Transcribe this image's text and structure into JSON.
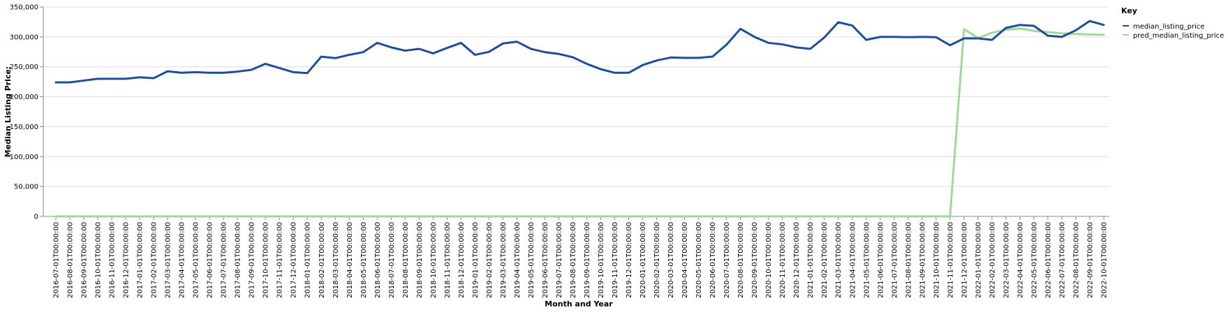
{
  "colors": {
    "median_listing_price": "#1f4e99",
    "pred_median_listing_price": "#a1d99b",
    "grid": "#dddddd",
    "axis": "#888888"
  },
  "chart_data": {
    "type": "line",
    "xlabel": "Month and Year",
    "ylabel": "Median Listing Price:",
    "ylim": [
      0,
      350000
    ],
    "yticks": [
      0,
      50000,
      100000,
      150000,
      200000,
      250000,
      300000,
      350000
    ],
    "ytick_labels": [
      "0",
      "50,000",
      "100,000",
      "150,000",
      "200,000",
      "250,000",
      "300,000",
      "350,000"
    ],
    "grid": true,
    "legend": {
      "title": "Key",
      "position": "top-right"
    },
    "x": [
      "2016-07-01T00:00:00",
      "2016-08-01T00:00:00",
      "2016-09-01T00:00:00",
      "2016-10-01T00:00:00",
      "2016-11-01T00:00:00",
      "2016-12-01T00:00:00",
      "2017-01-01T00:00:00",
      "2017-02-01T00:00:00",
      "2017-03-01T00:00:00",
      "2017-04-01T00:00:00",
      "2017-05-01T00:00:00",
      "2017-06-01T00:00:00",
      "2017-07-01T00:00:00",
      "2017-08-01T00:00:00",
      "2017-09-01T00:00:00",
      "2017-10-01T00:00:00",
      "2017-11-01T00:00:00",
      "2017-12-01T00:00:00",
      "2018-01-01T00:00:00",
      "2018-02-01T00:00:00",
      "2018-03-01T00:00:00",
      "2018-04-01T00:00:00",
      "2018-05-01T00:00:00",
      "2018-06-01T00:00:00",
      "2018-07-01T00:00:00",
      "2018-08-01T00:00:00",
      "2018-09-01T00:00:00",
      "2018-10-01T00:00:00",
      "2018-11-01T00:00:00",
      "2018-12-01T00:00:00",
      "2019-01-01T00:00:00",
      "2019-02-01T00:00:00",
      "2019-03-01T00:00:00",
      "2019-04-01T00:00:00",
      "2019-05-01T00:00:00",
      "2019-06-01T00:00:00",
      "2019-07-01T00:00:00",
      "2019-08-01T00:00:00",
      "2019-09-01T00:00:00",
      "2019-10-01T00:00:00",
      "2019-11-01T00:00:00",
      "2019-12-01T00:00:00",
      "2020-01-01T00:00:00",
      "2020-02-01T00:00:00",
      "2020-03-01T00:00:00",
      "2020-04-01T00:00:00",
      "2020-05-01T00:00:00",
      "2020-06-01T00:00:00",
      "2020-07-01T00:00:00",
      "2020-08-01T00:00:00",
      "2020-09-01T00:00:00",
      "2020-10-01T00:00:00",
      "2020-11-01T00:00:00",
      "2020-12-01T00:00:00",
      "2021-01-01T00:00:00",
      "2021-02-01T00:00:00",
      "2021-03-01T00:00:00",
      "2021-04-01T00:00:00",
      "2021-05-01T00:00:00",
      "2021-06-01T00:00:00",
      "2021-07-01T00:00:00",
      "2021-08-01T00:00:00",
      "2021-09-01T00:00:00",
      "2021-10-01T00:00:00",
      "2021-11-01T00:00:00",
      "2021-12-01T00:00:00",
      "2022-01-01T00:00:00",
      "2022-02-01T00:00:00",
      "2022-03-01T00:00:00",
      "2022-04-01T00:00:00",
      "2022-05-01T00:00:00",
      "2022-06-01T00:00:00",
      "2022-07-01T00:00:00",
      "2022-08-01T00:00:00",
      "2022-09-01T00:00:00",
      "2022-10-01T00:00:00"
    ],
    "series": [
      {
        "name": "median_listing_price",
        "values": [
          224000,
          224000,
          227000,
          230000,
          230000,
          230000,
          232500,
          231000,
          242500,
          240000,
          241000,
          240000,
          240000,
          242000,
          245000,
          255000,
          248000,
          241000,
          239500,
          267000,
          264500,
          270000,
          274500,
          290000,
          282500,
          277000,
          280000,
          272500,
          281500,
          290000,
          270000,
          275000,
          289000,
          292000,
          280000,
          274500,
          271500,
          266000,
          255000,
          246000,
          240000,
          240000,
          253000,
          260500,
          265500,
          265000,
          265000,
          267000,
          287000,
          313500,
          300000,
          290000,
          287500,
          282500,
          280000,
          299000,
          324500,
          319000,
          295000,
          300000,
          300000,
          299500,
          300000,
          299500,
          286000,
          297500,
          297500,
          295000,
          315000,
          320000,
          318500,
          302000,
          300000,
          311000,
          326500,
          320000
        ]
      },
      {
        "name": "pred_median_listing_price",
        "values": [
          0,
          0,
          0,
          0,
          0,
          0,
          0,
          0,
          0,
          0,
          0,
          0,
          0,
          0,
          0,
          0,
          0,
          0,
          0,
          0,
          0,
          0,
          0,
          0,
          0,
          0,
          0,
          0,
          0,
          0,
          0,
          0,
          0,
          0,
          0,
          0,
          0,
          0,
          0,
          0,
          0,
          0,
          0,
          0,
          0,
          0,
          0,
          0,
          0,
          0,
          0,
          0,
          0,
          0,
          0,
          0,
          0,
          0,
          0,
          0,
          0,
          0,
          0,
          0,
          0,
          313000,
          298000,
          307000,
          312000,
          314000,
          310000,
          308000,
          306000,
          305000,
          304000,
          303500
        ]
      }
    ]
  }
}
